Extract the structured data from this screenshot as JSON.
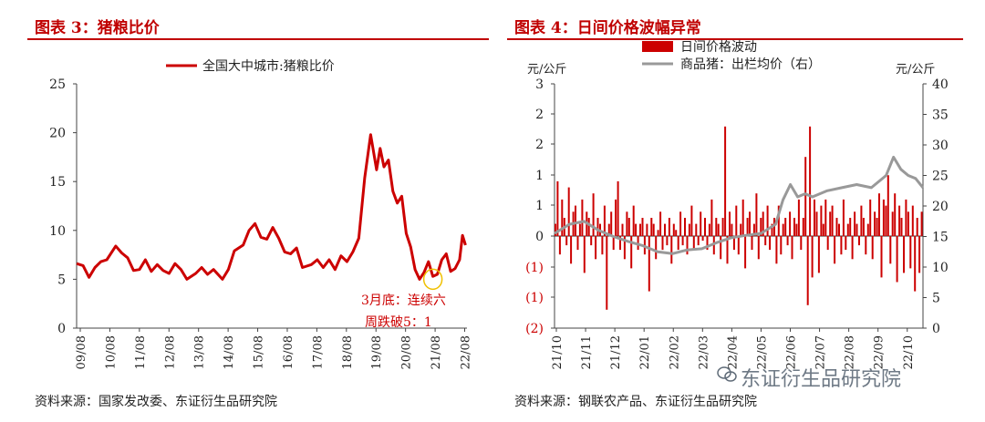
{
  "left_panel": {
    "title": "图表 3：猪粮比价",
    "source": "资料来源：国家发改委、东证衍生品研究院"
  },
  "right_panel": {
    "title": "图表 4：日间价格波幅异常",
    "source": "资料来源：钢联农产品、东证衍生品研究院"
  },
  "watermark": {
    "text": "东证衍生品研究院"
  },
  "colors": {
    "accent": "#c00000",
    "series_red": "#cc0000",
    "series_gray": "#999999",
    "highlight": "#f0c000"
  },
  "chart_data": [
    {
      "type": "line",
      "series": [
        {
          "name": "全国大中城市:猪粮比价",
          "x": [
            2009.58,
            2009.8,
            2010.0,
            2010.2,
            2010.4,
            2010.6,
            2010.9,
            2011.1,
            2011.3,
            2011.5,
            2011.7,
            2011.9,
            2012.1,
            2012.3,
            2012.5,
            2012.7,
            2012.9,
            2013.1,
            2013.3,
            2013.6,
            2013.8,
            2014.0,
            2014.2,
            2014.5,
            2014.7,
            2014.9,
            2015.2,
            2015.4,
            2015.6,
            2015.8,
            2016.0,
            2016.2,
            2016.4,
            2016.6,
            2016.8,
            2017.0,
            2017.2,
            2017.5,
            2017.7,
            2017.9,
            2018.1,
            2018.3,
            2018.5,
            2018.7,
            2018.9,
            2019.1,
            2019.3,
            2019.5,
            2019.7,
            2019.82,
            2019.95,
            2020.1,
            2020.25,
            2020.4,
            2020.55,
            2020.7,
            2020.85,
            2021.0,
            2021.15,
            2021.3,
            2021.45,
            2021.6,
            2021.75,
            2021.9,
            2022.05,
            2022.2,
            2022.35,
            2022.5,
            2022.6,
            2022.7
          ],
          "values": [
            6.6,
            6.4,
            5.2,
            6.2,
            6.8,
            7.0,
            8.4,
            7.7,
            7.2,
            5.9,
            6.0,
            7.0,
            5.8,
            6.5,
            5.9,
            5.6,
            6.6,
            6.0,
            5.0,
            5.6,
            6.2,
            5.5,
            6.0,
            5.0,
            6.0,
            7.9,
            8.5,
            10.0,
            10.7,
            9.3,
            9.1,
            10.3,
            9.2,
            7.8,
            7.6,
            8.2,
            6.2,
            6.5,
            7.0,
            6.2,
            7.0,
            6.0,
            7.4,
            6.8,
            7.8,
            9.2,
            15.4,
            19.8,
            16.2,
            18.4,
            16.5,
            17.2,
            14.0,
            12.8,
            13.5,
            9.7,
            8.3,
            6.0,
            5.0,
            5.7,
            6.8,
            5.3,
            5.5,
            7.0,
            7.6,
            5.8,
            6.1,
            7.0,
            9.5,
            8.5
          ]
        }
      ],
      "ylim": [
        0,
        25
      ],
      "yticks": [
        0,
        5,
        10,
        15,
        20,
        25
      ],
      "xticks": [
        "09/08",
        "10/08",
        "11/08",
        "12/08",
        "13/08",
        "14/08",
        "15/08",
        "16/08",
        "17/08",
        "18/08",
        "19/08",
        "20/08",
        "21/08",
        "22/08"
      ],
      "legend": "top-center",
      "annotation": "3月底：连续六周跌破5：1",
      "annotation_lines": [
        "3月底：连续六",
        "周跌破5：1"
      ],
      "grid": false
    },
    {
      "type": "bar+line",
      "series": [
        {
          "name": "日间价格波动",
          "axis": "left",
          "type": "bar",
          "values_summary": "daily price changes oscillating mostly within ±1 元/公斤, with spikes to 1.8 and -1.5 around 2022/06",
          "values": [
            0.2,
            0.9,
            -0.4,
            0.6,
            0.3,
            -0.2,
            0.8,
            -0.6,
            0.4,
            0.5,
            -0.3,
            0.2,
            0.6,
            -0.8,
            0.4,
            0.3,
            -0.2,
            0.7,
            -0.5,
            0.3,
            0.2,
            -0.4,
            0.5,
            -1.6,
            0.2,
            0.4,
            -0.3,
            0.6,
            0.9,
            -0.3,
            0.2,
            -0.5,
            0.4,
            0.3,
            -0.7,
            0.5,
            0.2,
            -0.3,
            0.2,
            0.3,
            -0.4,
            0.2,
            -1.2,
            0.3,
            0.2,
            -0.5,
            0.1,
            0.4,
            -0.3,
            0.2,
            -0.2,
            0.3,
            -0.6,
            0.2,
            0.1,
            -0.3,
            0.4,
            -0.2,
            0.3,
            -0.4,
            0.2,
            0.5,
            -0.3,
            0.2,
            -0.2,
            0.4,
            -0.1,
            0.3,
            -0.3,
            0.2,
            0.6,
            -0.4,
            0.3,
            0.2,
            -0.5,
            0.3,
            1.8,
            -0.6,
            0.4,
            0.2,
            -0.3,
            0.5,
            -0.4,
            0.2,
            0.6,
            -0.7,
            0.3,
            0.4,
            -0.3,
            0.2,
            0.7,
            -0.5,
            0.3,
            0.4,
            -0.2,
            0.5,
            -0.3,
            0.2,
            0.3,
            -0.6,
            0.5,
            -0.4,
            0.2,
            0.3,
            -0.2,
            0.4,
            -0.5,
            0.3,
            0.2,
            0.6,
            -0.3,
            0.3,
            1.3,
            -1.5,
            1.8,
            -0.9,
            0.6,
            0.4,
            -0.8,
            0.5,
            0.2,
            0.6,
            -0.3,
            0.4,
            0.5,
            -0.6,
            0.3,
            0.2,
            -0.4,
            0.6,
            -0.3,
            0.2,
            0.3,
            -0.5,
            0.4,
            0.2,
            -0.2,
            0.5,
            0.3,
            -0.4,
            0.2,
            0.6,
            -0.5,
            0.4,
            0.3,
            0.7,
            -0.9,
            0.6,
            0.5,
            1.0,
            -0.6,
            0.4,
            0.7,
            -1.0,
            0.5,
            0.3,
            -0.8,
            0.6,
            0.4,
            -0.7,
            0.5,
            -1.2,
            0.3,
            -0.8,
            0.4
          ]
        },
        {
          "name": "商品猪：出栏均价（右）",
          "axis": "right",
          "type": "line",
          "x": [
            0,
            0.04,
            0.08,
            0.12,
            0.16,
            0.2,
            0.24,
            0.28,
            0.32,
            0.36,
            0.4,
            0.44,
            0.48,
            0.52,
            0.56,
            0.6,
            0.62,
            0.64,
            0.66,
            0.68,
            0.7,
            0.74,
            0.78,
            0.82,
            0.86,
            0.9,
            0.92,
            0.94,
            0.96,
            0.98,
            1.0
          ],
          "values": [
            15.5,
            17.0,
            17.5,
            16.0,
            15.0,
            14.2,
            13.5,
            12.5,
            12.2,
            12.8,
            13.0,
            14.0,
            14.8,
            15.2,
            15.5,
            17.0,
            21.0,
            23.5,
            21.5,
            22.0,
            21.5,
            22.5,
            23.0,
            23.5,
            23.0,
            25.0,
            28.0,
            26.0,
            25.0,
            24.5,
            23.0
          ]
        }
      ],
      "left_ylim": [
        -2,
        3
      ],
      "left_yticks": [
        "(2)",
        "(1)",
        "(1)",
        "0",
        "1",
        "1",
        "2",
        "2",
        "3"
      ],
      "left_ytick_values": [
        -2,
        -1.5,
        -1,
        0,
        0.5,
        1,
        1.5,
        2,
        3
      ],
      "right_ylim": [
        0,
        40
      ],
      "right_yticks": [
        0,
        5,
        10,
        15,
        20,
        25,
        30,
        35,
        40
      ],
      "left_unit": "元/公斤",
      "right_unit": "元/公斤",
      "xticks": [
        "21/10",
        "21/11",
        "21/12",
        "22/01",
        "22/02",
        "22/03",
        "22/04",
        "22/05",
        "22/06",
        "22/07",
        "22/08",
        "22/09",
        "22/10"
      ],
      "legend": "top-center",
      "grid": false
    }
  ]
}
